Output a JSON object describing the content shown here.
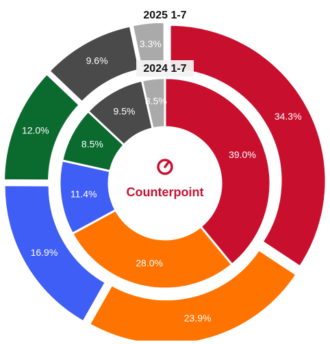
{
  "chart_data": {
    "type": "donut",
    "center_text": "Counterpoint",
    "series": [
      {
        "name": "2025 1-7",
        "values": [
          34.3,
          23.9,
          16.9,
          12.0,
          9.6,
          3.3
        ],
        "value_labels": [
          "34.3%",
          "23.9%",
          "16.9%",
          "12.0%",
          "9.6%",
          "3.3%"
        ],
        "colors": [
          "#c8102e",
          "#ff7300",
          "#3f5ef5",
          "#0b6b2e",
          "#4a4a4a",
          "#aaaaaa"
        ]
      },
      {
        "name": "2024 1-7",
        "values": [
          39.0,
          28.0,
          11.4,
          8.5,
          9.5,
          3.5
        ],
        "value_labels": [
          "39.0%",
          "28.0%",
          "11.4%",
          "8.5%",
          "9.5%",
          "3.5%"
        ],
        "colors": [
          "#c8102e",
          "#ff7300",
          "#3f5ef5",
          "#0b6b2e",
          "#4a4a4a",
          "#aaaaaa"
        ]
      }
    ]
  }
}
